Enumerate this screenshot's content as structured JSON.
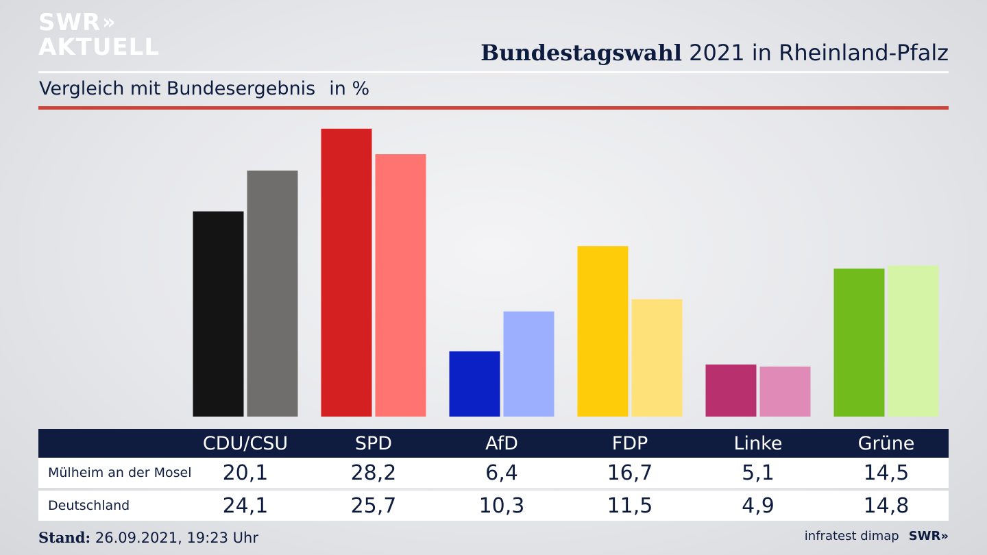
{
  "header": {
    "logo_line1": "SWR",
    "logo_chevrons": "»",
    "logo_line2": "AKTUELL",
    "title_bold": "Bundestagswahl",
    "title_rest": " 2021 in Rheinland-Pfalz",
    "subtitle": "Vergleich mit Bundesergebnis",
    "subtitle_unit": "in %"
  },
  "colors": {
    "header_bar": "#0f1c3f",
    "red_rule": "#d0433a",
    "text": "#0d1b3e"
  },
  "chart_data": {
    "type": "bar",
    "categories": [
      "CDU/CSU",
      "SPD",
      "AfD",
      "FDP",
      "Linke",
      "Grüne"
    ],
    "series": [
      {
        "name": "Mülheim an der Mosel",
        "values": [
          20.1,
          28.2,
          6.4,
          16.7,
          5.1,
          14.5
        ],
        "colors": [
          "#141414",
          "#d42020",
          "#0b21c6",
          "#ffcc0a",
          "#b9306f",
          "#72bb1c"
        ]
      },
      {
        "name": "Deutschland",
        "values": [
          24.1,
          25.7,
          10.3,
          11.5,
          4.9,
          14.8
        ],
        "colors": [
          "#6f6e6c",
          "#ff7370",
          "#9caffe",
          "#ffe179",
          "#e08ab7",
          "#d6f4a6"
        ]
      }
    ],
    "value_labels": [
      [
        "20,1",
        "28,2",
        "6,4",
        "16,7",
        "5,1",
        "14,5"
      ],
      [
        "24,1",
        "25,7",
        "10,3",
        "11,5",
        "4,9",
        "14,8"
      ]
    ],
    "ylim": [
      0,
      30
    ],
    "grid": false,
    "legend": "table-below"
  },
  "footer": {
    "stand_label": "Stand:",
    "stand_value": " 26.09.2021, 19:23 Uhr",
    "source": "infratest dimap",
    "brand": "SWR»"
  }
}
